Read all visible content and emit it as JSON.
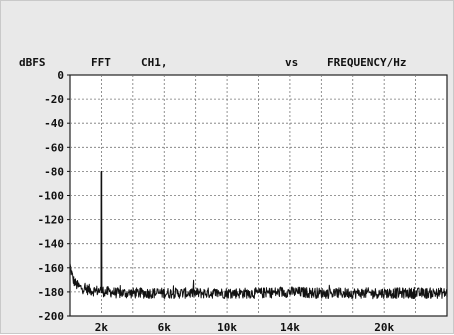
{
  "header": {
    "ylabel": "dBFS",
    "title_mode": "FFT",
    "title_channel": "CH1,",
    "title_vs": "vs",
    "xlabel": "FREQUENCY/Hz"
  },
  "colors": {
    "panel": "#e9e9e9",
    "plot_bg": "#ffffff",
    "grid": "#777777",
    "trace": "#111111",
    "text": "#111111"
  },
  "chart_data": {
    "type": "line",
    "title": "FFT CH1, vs FREQUENCY/Hz",
    "xlabel": "FREQUENCY/Hz",
    "ylabel": "dBFS",
    "xlim": [
      0,
      24000
    ],
    "ylim": [
      -200,
      0
    ],
    "grid": true,
    "y_ticks": [
      0,
      -20,
      -40,
      -60,
      -80,
      -100,
      -120,
      -140,
      -160,
      -180,
      -200
    ],
    "y_tick_labels": [
      "0",
      "-20",
      "-40",
      "-60",
      "-80",
      "-100",
      "-120",
      "-140",
      "-160",
      "-180",
      "-200"
    ],
    "x_ticks": [
      2000,
      6000,
      10000,
      14000,
      20000
    ],
    "x_tick_labels": [
      "2k",
      "6k",
      "10k",
      "14k",
      "20k"
    ],
    "series": [
      {
        "x": [
          0,
          200,
          400,
          600,
          800,
          1000,
          1200,
          1400,
          1600,
          1800,
          1999,
          2000,
          2001,
          2200,
          2600,
          3000,
          4000,
          5000,
          6000,
          8000,
          10000,
          12000,
          14000,
          16000,
          18000,
          20000,
          22000,
          24000
        ],
        "y": [
          -158,
          -170,
          -174,
          -176,
          -177,
          -178,
          -178,
          -179,
          -179,
          -179,
          -179,
          -80,
          -179,
          -180,
          -180,
          -181,
          -181,
          -181,
          -181,
          -181,
          -181,
          -181,
          -180,
          -181,
          -181,
          -181,
          -181,
          -181
        ],
        "noise_band_db": 9
      }
    ]
  }
}
